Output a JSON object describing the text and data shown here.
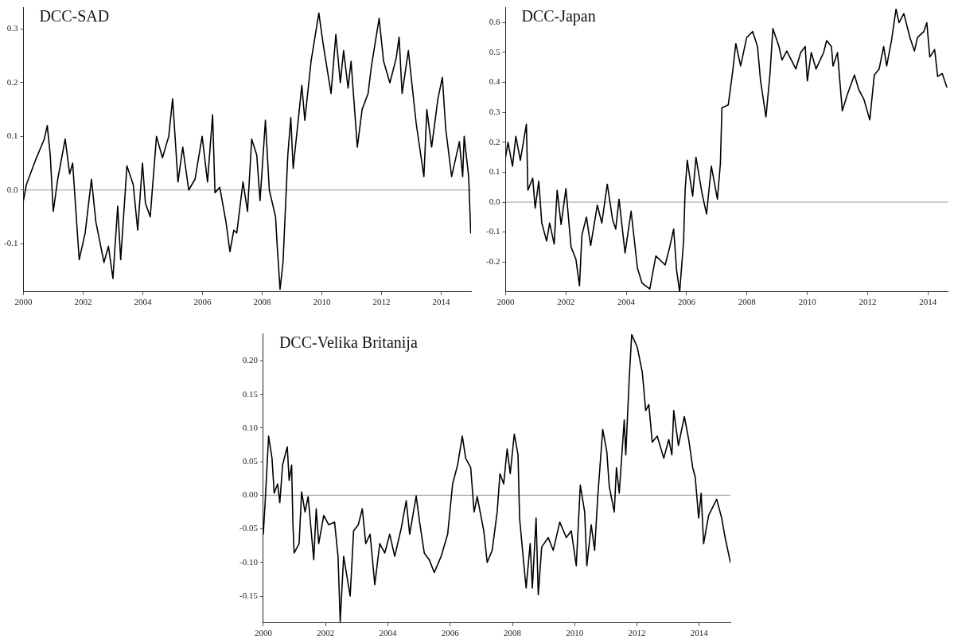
{
  "chart_data": [
    {
      "type": "line",
      "title": "DCC-SAD",
      "xlim": [
        2000,
        2015
      ],
      "xticks": [
        2000,
        2002,
        2004,
        2006,
        2008,
        2010,
        2012,
        2014
      ],
      "ylim": [
        -0.19,
        0.34
      ],
      "yticks": [
        {
          "value": -0.1,
          "label": "-0.1"
        },
        {
          "value": 0,
          "label": "0.0"
        },
        {
          "value": 0.1,
          "label": "0.1"
        },
        {
          "value": 0.2,
          "label": "0.2"
        },
        {
          "value": 0.3,
          "label": "0.3"
        }
      ],
      "grid": false,
      "legend": false,
      "marker": "none",
      "line_style": "solid",
      "ref_lines": [
        {
          "axis": "y",
          "value": 0,
          "color": "#999999"
        }
      ],
      "series": [
        {
          "color": "#000000",
          "x": [
            2000,
            2000.1,
            2000.4,
            2000.7,
            2000.8,
            2000.9,
            2001.0,
            2001.15,
            2001.4,
            2001.55,
            2001.65,
            2001.87,
            2002.07,
            2002.28,
            2002.43,
            2002.7,
            2002.85,
            2003.0,
            2003.16,
            2003.26,
            2003.47,
            2003.68,
            2003.83,
            2003.99,
            2004.09,
            2004.25,
            2004.46,
            2004.66,
            2004.87,
            2005.0,
            2005.18,
            2005.34,
            2005.54,
            2005.75,
            2005.99,
            2006.17,
            2006.34,
            2006.42,
            2006.58,
            2006.79,
            2006.92,
            2007.05,
            2007.15,
            2007.36,
            2007.51,
            2007.65,
            2007.82,
            2007.93,
            2008.11,
            2008.24,
            2008.45,
            2008.5,
            2008.6,
            2008.7,
            2008.86,
            2008.96,
            2009.04,
            2009.33,
            2009.43,
            2009.64,
            2009.9,
            2010.05,
            2010.31,
            2010.47,
            2010.62,
            2010.73,
            2010.88,
            2010.98,
            2011.19,
            2011.35,
            2011.55,
            2011.66,
            2011.92,
            2012.07,
            2012.28,
            2012.49,
            2012.59,
            2012.69,
            2012.9,
            2013.16,
            2013.42,
            2013.52,
            2013.68,
            2013.89,
            2014.04,
            2014.15,
            2014.35,
            2014.61,
            2014.72,
            2014.77,
            2014.92,
            2014.99
          ],
          "values": [
            -0.02,
            0.01,
            0.055,
            0.095,
            0.12,
            0.065,
            -0.04,
            0.02,
            0.095,
            0.03,
            0.05,
            -0.13,
            -0.08,
            0.02,
            -0.06,
            -0.135,
            -0.105,
            -0.165,
            -0.03,
            -0.13,
            0.045,
            0.01,
            -0.075,
            0.05,
            -0.025,
            -0.05,
            0.1,
            0.06,
            0.1,
            0.17,
            0.015,
            0.08,
            0.0,
            0.02,
            0.1,
            0.015,
            0.14,
            -0.005,
            0.005,
            -0.06,
            -0.115,
            -0.075,
            -0.08,
            0.015,
            -0.04,
            0.095,
            0.065,
            -0.02,
            0.13,
            0.0,
            -0.05,
            -0.1,
            -0.185,
            -0.135,
            0.065,
            0.135,
            0.04,
            0.195,
            0.13,
            0.24,
            0.33,
            0.27,
            0.18,
            0.29,
            0.2,
            0.26,
            0.19,
            0.24,
            0.08,
            0.15,
            0.18,
            0.23,
            0.32,
            0.24,
            0.2,
            0.245,
            0.285,
            0.18,
            0.26,
            0.125,
            0.025,
            0.15,
            0.08,
            0.17,
            0.21,
            0.115,
            0.025,
            0.09,
            0.025,
            0.1,
            0.025,
            -0.08
          ]
        }
      ]
    },
    {
      "type": "line",
      "title": "DCC-Japan",
      "xlim": [
        2000,
        2014.65
      ],
      "xticks": [
        2000,
        2002,
        2004,
        2006,
        2008,
        2010,
        2012,
        2014
      ],
      "ylim": [
        -0.3,
        0.65
      ],
      "yticks": [
        {
          "value": -0.2,
          "label": "-0.2"
        },
        {
          "value": -0.1,
          "label": "-0.1"
        },
        {
          "value": 0,
          "label": "0.0"
        },
        {
          "value": 0.1,
          "label": "0.1"
        },
        {
          "value": 0.2,
          "label": "0.2"
        },
        {
          "value": 0.3,
          "label": "0.3"
        },
        {
          "value": 0.4,
          "label": "0.4"
        },
        {
          "value": 0.5,
          "label": "0.5"
        },
        {
          "value": 0.6,
          "label": "0.6"
        }
      ],
      "grid": false,
      "legend": false,
      "marker": "none",
      "line_style": "solid",
      "ref_lines": [
        {
          "axis": "y",
          "value": 0,
          "color": "#999999"
        }
      ],
      "series": [
        {
          "color": "#000000",
          "x": [
            2000,
            2000.08,
            2000.23,
            2000.34,
            2000.49,
            2000.69,
            2000.74,
            2000.9,
            2000.98,
            2001.1,
            2001.2,
            2001.36,
            2001.46,
            2001.61,
            2001.71,
            2001.84,
            2002.0,
            2002.17,
            2002.33,
            2002.45,
            2002.53,
            2002.68,
            2002.82,
            2003.04,
            2003.19,
            2003.37,
            2003.55,
            2003.65,
            2003.76,
            2003.96,
            2004.16,
            2004.37,
            2004.52,
            2004.78,
            2004.98,
            2005.29,
            2005.44,
            2005.57,
            2005.67,
            2005.77,
            2005.9,
            2005.95,
            2006.02,
            2006.2,
            2006.31,
            2006.51,
            2006.66,
            2006.82,
            2007.02,
            2007.12,
            2007.17,
            2007.38,
            2007.53,
            2007.63,
            2007.79,
            2007.99,
            2008.19,
            2008.35,
            2008.45,
            2008.63,
            2008.76,
            2008.86,
            2009.06,
            2009.16,
            2009.32,
            2009.62,
            2009.78,
            2009.93,
            2010.0,
            2010.13,
            2010.29,
            2010.54,
            2010.64,
            2010.8,
            2010.85,
            2011.0,
            2011.16,
            2011.31,
            2011.56,
            2011.71,
            2011.87,
            2012.07,
            2012.22,
            2012.38,
            2012.53,
            2012.63,
            2012.79,
            2012.94,
            2013.04,
            2013.2,
            2013.4,
            2013.55,
            2013.65,
            2013.86,
            2013.96,
            2014.06,
            2014.22,
            2014.32,
            2014.47,
            2014.62
          ],
          "values": [
            0.15,
            0.2,
            0.12,
            0.22,
            0.14,
            0.26,
            0.04,
            0.08,
            -0.02,
            0.07,
            -0.07,
            -0.13,
            -0.07,
            -0.14,
            0.04,
            -0.075,
            0.045,
            -0.15,
            -0.19,
            -0.28,
            -0.11,
            -0.05,
            -0.145,
            -0.01,
            -0.07,
            0.06,
            -0.06,
            -0.09,
            0.01,
            -0.17,
            -0.03,
            -0.22,
            -0.27,
            -0.29,
            -0.18,
            -0.21,
            -0.15,
            -0.09,
            -0.23,
            -0.3,
            -0.13,
            0.04,
            0.14,
            0.02,
            0.15,
            0.03,
            -0.04,
            0.12,
            0.01,
            0.13,
            0.315,
            0.325,
            0.44,
            0.53,
            0.455,
            0.55,
            0.57,
            0.52,
            0.405,
            0.285,
            0.425,
            0.58,
            0.52,
            0.475,
            0.505,
            0.445,
            0.5,
            0.52,
            0.405,
            0.5,
            0.445,
            0.5,
            0.54,
            0.52,
            0.455,
            0.5,
            0.305,
            0.355,
            0.425,
            0.375,
            0.345,
            0.275,
            0.425,
            0.445,
            0.52,
            0.455,
            0.54,
            0.645,
            0.6,
            0.63,
            0.55,
            0.505,
            0.55,
            0.57,
            0.6,
            0.485,
            0.51,
            0.42,
            0.43,
            0.385
          ]
        }
      ]
    },
    {
      "type": "line",
      "title": "DCC-Velika Britanija",
      "xlim": [
        2000,
        2015
      ],
      "xticks": [
        2000,
        2002,
        2004,
        2006,
        2008,
        2010,
        2012,
        2014
      ],
      "ylim": [
        -0.19,
        0.24
      ],
      "yticks": [
        {
          "value": -0.15,
          "label": "-0.15"
        },
        {
          "value": -0.1,
          "label": "-0.10"
        },
        {
          "value": -0.05,
          "label": "-0.05"
        },
        {
          "value": 0,
          "label": "0.00"
        },
        {
          "value": 0.05,
          "label": "0.05"
        },
        {
          "value": 0.1,
          "label": "0.10"
        },
        {
          "value": 0.15,
          "label": "0.15"
        },
        {
          "value": 0.2,
          "label": "0.20"
        }
      ],
      "grid": false,
      "legend": false,
      "marker": "none",
      "line_style": "solid",
      "ref_lines": [
        {
          "axis": "y",
          "value": 0,
          "color": "#999999"
        }
      ],
      "series": [
        {
          "color": "#000000",
          "x": [
            2000,
            2000.06,
            2000.17,
            2000.28,
            2000.35,
            2000.46,
            2000.53,
            2000.62,
            2000.77,
            2000.83,
            2000.91,
            2000.95,
            2000.99,
            2001.15,
            2001.23,
            2001.34,
            2001.44,
            2001.62,
            2001.7,
            2001.78,
            2001.94,
            2002.1,
            2002.29,
            2002.4,
            2002.47,
            2002.58,
            2002.79,
            2002.9,
            2003.05,
            2003.18,
            2003.29,
            2003.43,
            2003.58,
            2003.74,
            2003.9,
            2004.06,
            2004.22,
            2004.43,
            2004.59,
            2004.7,
            2004.91,
            2005.02,
            2005.17,
            2005.33,
            2005.49,
            2005.71,
            2005.92,
            2006.08,
            2006.24,
            2006.39,
            2006.5,
            2006.66,
            2006.77,
            2006.87,
            2007.08,
            2007.19,
            2007.35,
            2007.51,
            2007.6,
            2007.72,
            2007.83,
            2007.93,
            2008.06,
            2008.18,
            2008.23,
            2008.36,
            2008.44,
            2008.57,
            2008.64,
            2008.76,
            2008.83,
            2008.94,
            2009.15,
            2009.31,
            2009.52,
            2009.73,
            2009.89,
            2010.05,
            2010.18,
            2010.32,
            2010.39,
            2010.53,
            2010.64,
            2010.74,
            2010.9,
            2011.03,
            2011.11,
            2011.27,
            2011.34,
            2011.43,
            2011.59,
            2011.64,
            2011.75,
            2011.83,
            2012.01,
            2012.17,
            2012.28,
            2012.38,
            2012.49,
            2012.65,
            2012.86,
            2013.02,
            2013.12,
            2013.18,
            2013.33,
            2013.52,
            2013.66,
            2013.79,
            2013.87,
            2013.98,
            2014.06,
            2014.14,
            2014.3,
            2014.56,
            2014.72,
            2014.83,
            2015.0
          ],
          "values": [
            -0.058,
            -0.01,
            0.088,
            0.055,
            0.003,
            0.017,
            -0.011,
            0.045,
            0.072,
            0.022,
            0.045,
            -0.04,
            -0.086,
            -0.072,
            0.005,
            -0.025,
            -0.002,
            -0.096,
            -0.02,
            -0.072,
            -0.03,
            -0.044,
            -0.04,
            -0.091,
            -0.188,
            -0.091,
            -0.15,
            -0.053,
            -0.044,
            -0.02,
            -0.072,
            -0.058,
            -0.133,
            -0.072,
            -0.086,
            -0.058,
            -0.091,
            -0.049,
            -0.008,
            -0.058,
            -0.001,
            -0.04,
            -0.086,
            -0.096,
            -0.115,
            -0.091,
            -0.058,
            0.017,
            0.045,
            0.088,
            0.055,
            0.041,
            -0.025,
            -0.002,
            -0.053,
            -0.1,
            -0.082,
            -0.025,
            0.032,
            0.017,
            0.069,
            0.032,
            0.091,
            0.06,
            -0.034,
            -0.1,
            -0.138,
            -0.072,
            -0.138,
            -0.034,
            -0.148,
            -0.077,
            -0.063,
            -0.082,
            -0.04,
            -0.063,
            -0.053,
            -0.105,
            0.015,
            -0.025,
            -0.105,
            -0.044,
            -0.082,
            -0.002,
            0.098,
            0.065,
            0.013,
            -0.025,
            0.041,
            0.003,
            0.112,
            0.06,
            0.173,
            0.239,
            0.22,
            0.183,
            0.126,
            0.135,
            0.079,
            0.088,
            0.055,
            0.083,
            0.06,
            0.126,
            0.074,
            0.117,
            0.083,
            0.041,
            0.027,
            -0.034,
            0.003,
            -0.072,
            -0.03,
            -0.006,
            -0.034,
            -0.063,
            -0.1
          ]
        }
      ]
    }
  ]
}
